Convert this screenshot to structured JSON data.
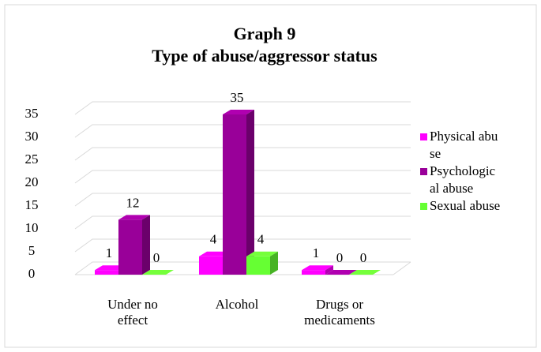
{
  "chart_data": {
    "type": "bar3d",
    "title": "Graph 9",
    "subtitle": "Type of abuse/aggressor status",
    "categories": [
      "Under no effect",
      "Alcohol",
      "Drugs or medicaments"
    ],
    "series": [
      {
        "name": "Physical abuse",
        "color": "#ff00ff",
        "values": [
          1,
          4,
          1
        ]
      },
      {
        "name": "Psychological abuse",
        "color": "#990099",
        "values": [
          12,
          35,
          0
        ]
      },
      {
        "name": "Sexual abuse",
        "color": "#66ff33",
        "values": [
          0,
          4,
          0
        ]
      }
    ],
    "ylim": [
      0,
      35
    ],
    "yticks": [
      0,
      5,
      10,
      15,
      20,
      25,
      30,
      35
    ],
    "grid": true,
    "legend": "right"
  }
}
